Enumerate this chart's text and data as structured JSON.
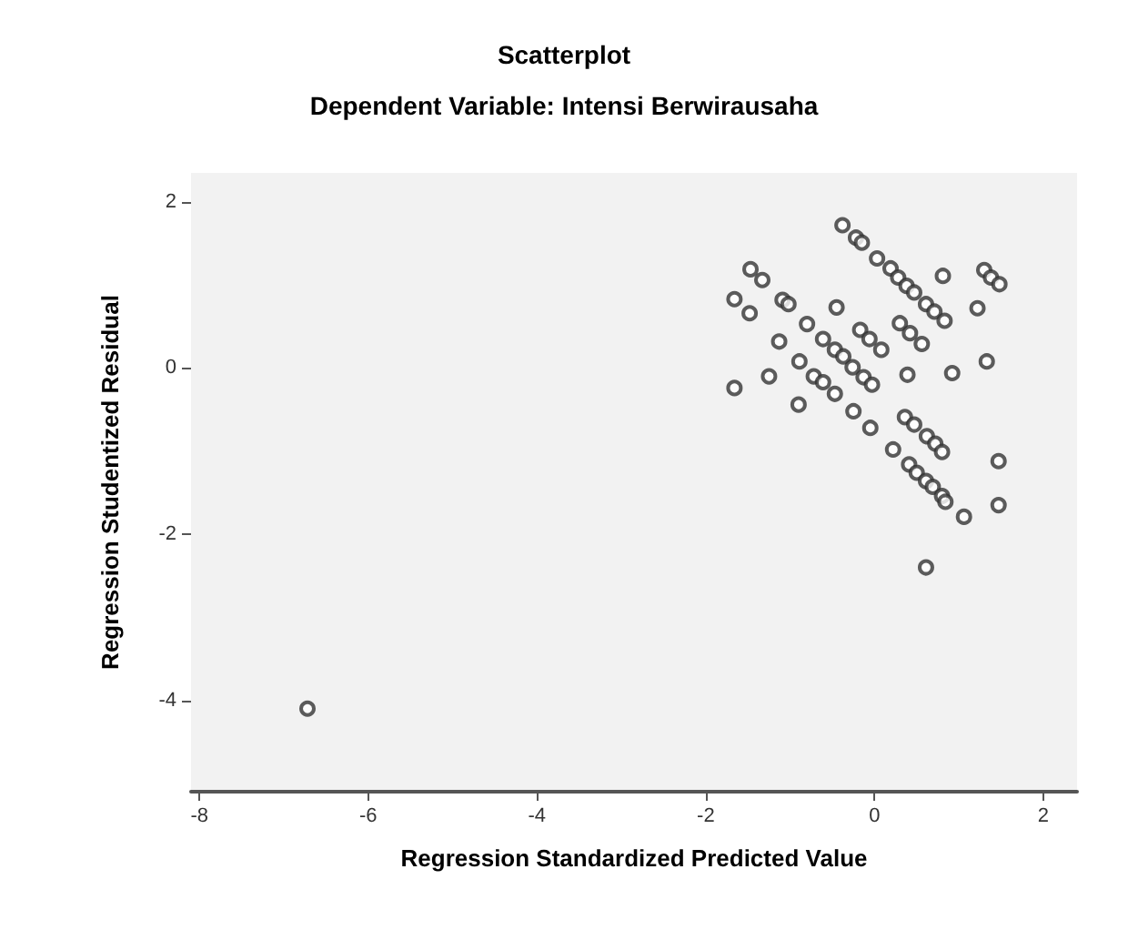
{
  "chart_data": {
    "type": "scatter",
    "title": "Scatterplot",
    "subtitle": "Dependent Variable: Intensi Berwirausaha",
    "xlabel": "Regression Standardized Predicted Value",
    "ylabel": "Regression Studentized Residual",
    "xlim": [
      -8.1,
      2.4
    ],
    "ylim": [
      -5.1,
      2.35
    ],
    "xticks": [
      -8,
      -6,
      -4,
      -2,
      0,
      2
    ],
    "yticks": [
      -4,
      -2,
      0,
      2
    ],
    "grid": false,
    "marker": "circle",
    "series": [
      {
        "color": "#333333",
        "x": [
          -0.38,
          -0.22,
          -0.15,
          0.03,
          0.19,
          0.28,
          0.38,
          0.47,
          0.61,
          0.71,
          0.83,
          0.81,
          1.3,
          1.38,
          1.48,
          1.22,
          1.33,
          0.92,
          -1.47,
          -1.33,
          -1.66,
          -1.48,
          -1.09,
          -1.02,
          -0.45,
          -0.8,
          -1.13,
          -0.61,
          -0.47,
          -0.37,
          -0.26,
          -0.89,
          -0.17,
          -0.06,
          0.08,
          0.3,
          0.42,
          0.56,
          0.39,
          -0.13,
          -0.03,
          -1.25,
          -0.72,
          -0.61,
          -0.47,
          -1.66,
          -0.9,
          -0.25,
          -0.05,
          0.36,
          0.47,
          0.62,
          0.72,
          0.8,
          0.22,
          0.41,
          0.5,
          0.61,
          0.69,
          0.8,
          0.84,
          1.06,
          1.47,
          1.47,
          0.61,
          -6.72
        ],
        "values": [
          1.72,
          1.57,
          1.51,
          1.32,
          1.2,
          1.09,
          0.99,
          0.91,
          0.77,
          0.68,
          0.57,
          1.11,
          1.18,
          1.09,
          1.01,
          0.72,
          0.08,
          -0.06,
          1.19,
          1.06,
          0.83,
          0.66,
          0.82,
          0.77,
          0.73,
          0.53,
          0.32,
          0.35,
          0.22,
          0.14,
          0.01,
          0.08,
          0.46,
          0.35,
          0.22,
          0.54,
          0.42,
          0.29,
          -0.08,
          -0.11,
          -0.2,
          -0.1,
          -0.1,
          -0.17,
          -0.31,
          -0.24,
          -0.44,
          -0.52,
          -0.72,
          -0.59,
          -0.68,
          -0.82,
          -0.91,
          -1.01,
          -0.98,
          -1.16,
          -1.26,
          -1.36,
          -1.43,
          -1.54,
          -1.61,
          -1.79,
          -1.12,
          -1.65,
          -2.4,
          -4.1
        ]
      }
    ]
  }
}
